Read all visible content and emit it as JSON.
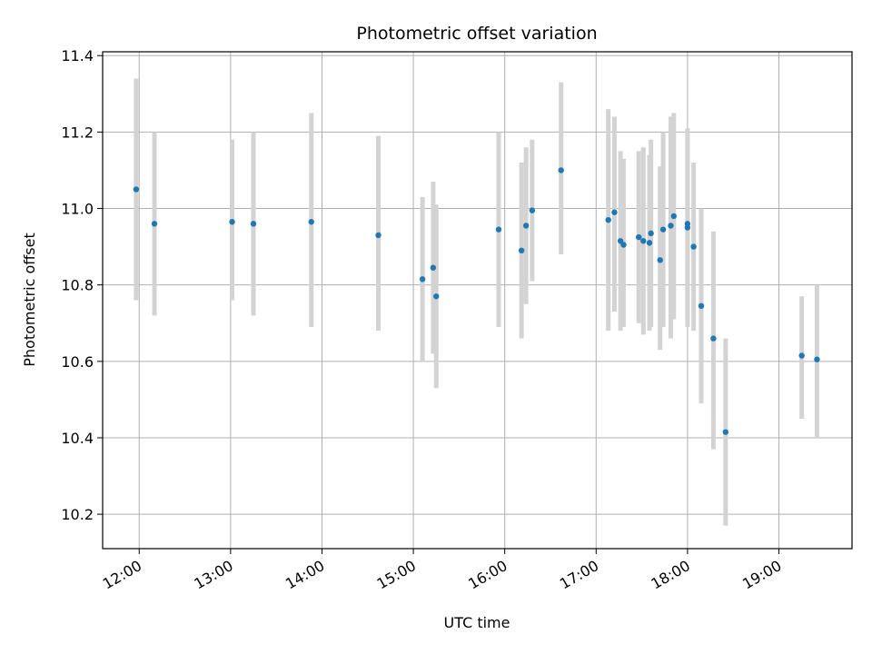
{
  "chart_data": {
    "type": "scatter",
    "title": "Photometric offset variation",
    "xlabel": "UTC time",
    "ylabel": "Photometric offset",
    "xlim": [
      "11:36",
      "19:48"
    ],
    "ylim": [
      10.11,
      11.41
    ],
    "x_ticks": [
      "12:00",
      "13:00",
      "14:00",
      "15:00",
      "16:00",
      "17:00",
      "18:00",
      "19:00"
    ],
    "y_ticks": [
      10.2,
      10.4,
      10.6,
      10.8,
      11.0,
      11.2,
      11.4
    ],
    "grid": true,
    "colors": {
      "point": "#1f77b4",
      "errorbar": "#d3d3d3",
      "grid": "#b0b0b0"
    },
    "points": [
      {
        "x": "11:58",
        "y": 11.05,
        "lo": 10.76,
        "hi": 11.34
      },
      {
        "x": "12:10",
        "y": 10.96,
        "lo": 10.72,
        "hi": 11.2
      },
      {
        "x": "13:01",
        "y": 10.965,
        "lo": 10.76,
        "hi": 11.18
      },
      {
        "x": "13:15",
        "y": 10.96,
        "lo": 10.72,
        "hi": 11.2
      },
      {
        "x": "13:53",
        "y": 10.965,
        "lo": 10.69,
        "hi": 11.25
      },
      {
        "x": "14:37",
        "y": 10.93,
        "lo": 10.68,
        "hi": 11.19
      },
      {
        "x": "15:06",
        "y": 10.815,
        "lo": 10.6,
        "hi": 11.03
      },
      {
        "x": "15:13",
        "y": 10.845,
        "lo": 10.62,
        "hi": 11.07
      },
      {
        "x": "15:15",
        "y": 10.77,
        "lo": 10.53,
        "hi": 11.01
      },
      {
        "x": "15:56",
        "y": 10.945,
        "lo": 10.69,
        "hi": 11.2
      },
      {
        "x": "16:11",
        "y": 10.89,
        "lo": 10.66,
        "hi": 11.12
      },
      {
        "x": "16:14",
        "y": 10.955,
        "lo": 10.75,
        "hi": 11.16
      },
      {
        "x": "16:18",
        "y": 10.995,
        "lo": 10.81,
        "hi": 11.18
      },
      {
        "x": "16:37",
        "y": 11.1,
        "lo": 10.88,
        "hi": 11.33
      },
      {
        "x": "17:08",
        "y": 10.97,
        "lo": 10.68,
        "hi": 11.26
      },
      {
        "x": "17:12",
        "y": 10.99,
        "lo": 10.73,
        "hi": 11.24
      },
      {
        "x": "17:16",
        "y": 10.915,
        "lo": 10.68,
        "hi": 11.15
      },
      {
        "x": "17:18",
        "y": 10.905,
        "lo": 10.69,
        "hi": 11.13
      },
      {
        "x": "17:28",
        "y": 10.925,
        "lo": 10.7,
        "hi": 11.15
      },
      {
        "x": "17:31",
        "y": 10.915,
        "lo": 10.67,
        "hi": 11.16
      },
      {
        "x": "17:35",
        "y": 10.91,
        "lo": 10.68,
        "hi": 11.14
      },
      {
        "x": "17:36",
        "y": 10.935,
        "lo": 10.69,
        "hi": 11.18
      },
      {
        "x": "17:42",
        "y": 10.865,
        "lo": 10.63,
        "hi": 11.11
      },
      {
        "x": "17:44",
        "y": 10.945,
        "lo": 10.69,
        "hi": 11.2
      },
      {
        "x": "17:49",
        "y": 10.955,
        "lo": 10.66,
        "hi": 11.24
      },
      {
        "x": "17:51",
        "y": 10.98,
        "lo": 10.71,
        "hi": 11.25
      },
      {
        "x": "18:00",
        "y": 10.95,
        "lo": 10.69,
        "hi": 11.21
      },
      {
        "x": "18:00",
        "y": 10.96,
        "lo": 10.71,
        "hi": 11.19
      },
      {
        "x": "18:04",
        "y": 10.9,
        "lo": 10.68,
        "hi": 11.12
      },
      {
        "x": "18:09",
        "y": 10.745,
        "lo": 10.49,
        "hi": 11.0
      },
      {
        "x": "18:17",
        "y": 10.66,
        "lo": 10.37,
        "hi": 10.94
      },
      {
        "x": "18:25",
        "y": 10.415,
        "lo": 10.17,
        "hi": 10.66
      },
      {
        "x": "19:15",
        "y": 10.615,
        "lo": 10.45,
        "hi": 10.77
      },
      {
        "x": "19:25",
        "y": 10.605,
        "lo": 10.4,
        "hi": 10.8
      }
    ]
  }
}
